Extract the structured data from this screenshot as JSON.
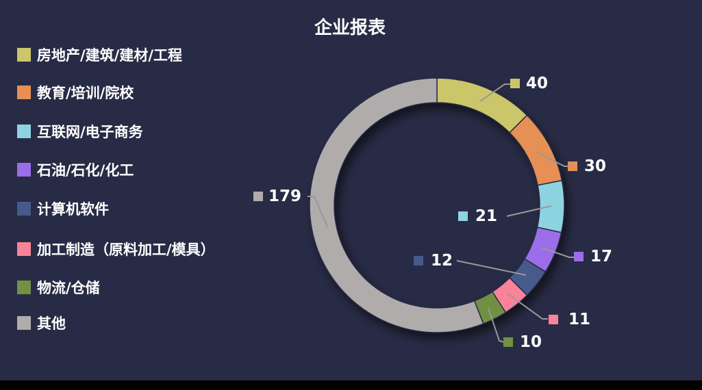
{
  "title": "企业报表",
  "chart_data": {
    "type": "pie",
    "subtype": "donut",
    "title": "企业报表",
    "legend_position": "left",
    "total": 320,
    "categories": [
      "房地产/建筑/建材/工程",
      "教育/培训/院校",
      "互联网/电子商务",
      "石油/石化/化工",
      "计算机软件",
      "加工制造（原料加工/模具）",
      "物流/仓储",
      "其他"
    ],
    "values": [
      40,
      30,
      21,
      17,
      12,
      11,
      10,
      179
    ],
    "colors": [
      "#cbc66a",
      "#e69055",
      "#8ed3e2",
      "#9c6de8",
      "#475a8c",
      "#fb8399",
      "#719143",
      "#b0acac"
    ],
    "value_labels": [
      "40",
      "30",
      "21",
      "17",
      "12",
      "11",
      "10",
      "179"
    ],
    "background_color": "#282b45",
    "label_line_color": "#999999",
    "text_color": "#ffffff"
  }
}
